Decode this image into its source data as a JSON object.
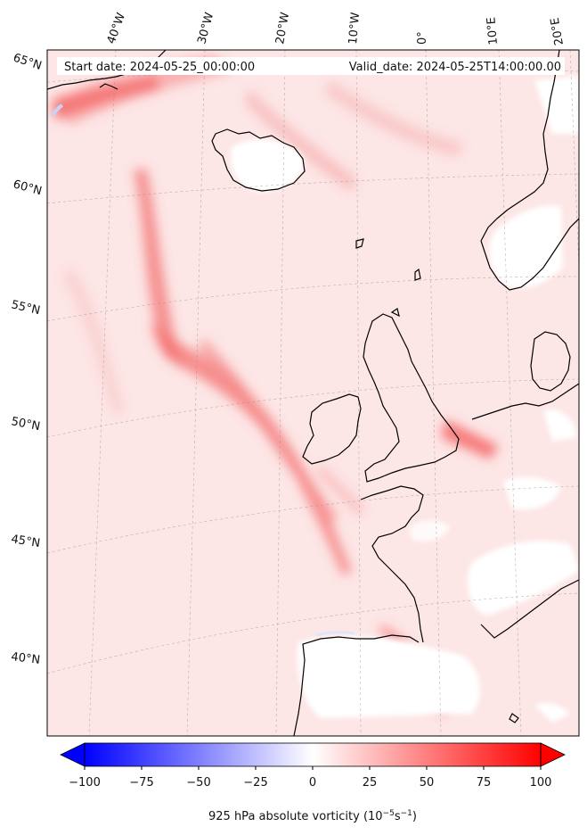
{
  "map": {
    "start_date_text": "Start date: 2024-05-25_00:00:00",
    "valid_date_text": "Valid_date: 2024-05-25T14:00:00.00",
    "longitude_labels": [
      "40°W",
      "30°W",
      "20°W",
      "10°W",
      "0°",
      "10°E",
      "20°E"
    ],
    "latitude_labels": [
      "65°N",
      "60°N",
      "55°N",
      "50°N",
      "45°N",
      "40°N"
    ],
    "colorbar": {
      "label_prefix": "925 hPa absolute vorticity (10",
      "label_exp1": "−5",
      "label_mid": "s",
      "label_exp2": "−1",
      "label_suffix": ")",
      "min": -100,
      "max": 100,
      "ticks": [
        "−100",
        "−75",
        "−50",
        "−25",
        "0",
        "25",
        "50",
        "75",
        "100"
      ],
      "colors": {
        "negative": "#0000ff",
        "zero": "#ffffff",
        "positive": "#ff0000"
      }
    }
  }
}
